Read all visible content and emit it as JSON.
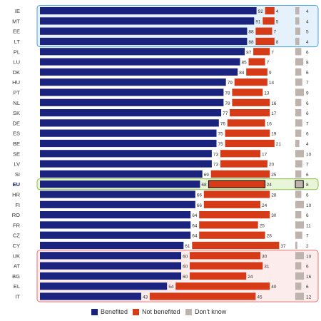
{
  "chart_data": {
    "type": "bar",
    "orientation": "horizontal",
    "stacked": true,
    "categories": [
      "IE",
      "MT",
      "EE",
      "LT",
      "PL",
      "LU",
      "DK",
      "HU",
      "PT",
      "NL",
      "SK",
      "DE",
      "ES",
      "BE",
      "SE",
      "LV",
      "SI",
      "EU",
      "HR",
      "FI",
      "RO",
      "FR",
      "CZ",
      "CY",
      "UK",
      "AT",
      "BG",
      "EL",
      "IT"
    ],
    "highlight_category": "EU",
    "series": [
      {
        "name": "Benefited",
        "color": "#1a237e",
        "values": [
          92,
          91,
          88,
          88,
          87,
          85,
          84,
          79,
          78,
          78,
          77,
          76,
          75,
          75,
          73,
          73,
          69,
          68,
          66,
          66,
          64,
          64,
          64,
          61,
          60,
          60,
          60,
          54,
          43
        ]
      },
      {
        "name": "Not benefited",
        "color": "#d73a17",
        "values": [
          4,
          5,
          7,
          8,
          7,
          7,
          9,
          14,
          13,
          16,
          17,
          16,
          19,
          21,
          17,
          20,
          25,
          24,
          28,
          24,
          30,
          25,
          28,
          37,
          30,
          31,
          24,
          40,
          45
        ]
      },
      {
        "name": "Don't know",
        "color": "#bfb3ad",
        "values": [
          4,
          4,
          5,
          4,
          6,
          8,
          6,
          7,
          9,
          6,
          6,
          7,
          6,
          4,
          10,
          7,
          6,
          8,
          6,
          10,
          6,
          11,
          7,
          2,
          10,
          6,
          16,
          6,
          12
        ]
      }
    ],
    "xlim": [
      0,
      100
    ]
  },
  "legend": {
    "benefited": "Benefited",
    "not_benefited": "Not benefited",
    "dont_know": "Don't know"
  },
  "colors": {
    "benefited": "#1a237e",
    "not_benefited": "#d73a17",
    "dont_know": "#bfb3ad",
    "highlight_top": "#4aa3df",
    "highlight_top_fill": "#e6f2fb",
    "highlight_eu": "#8bc34a",
    "highlight_eu_fill": "#e8f5d8",
    "highlight_bottom": "#e57373",
    "highlight_bottom_fill": "#fdecec"
  }
}
